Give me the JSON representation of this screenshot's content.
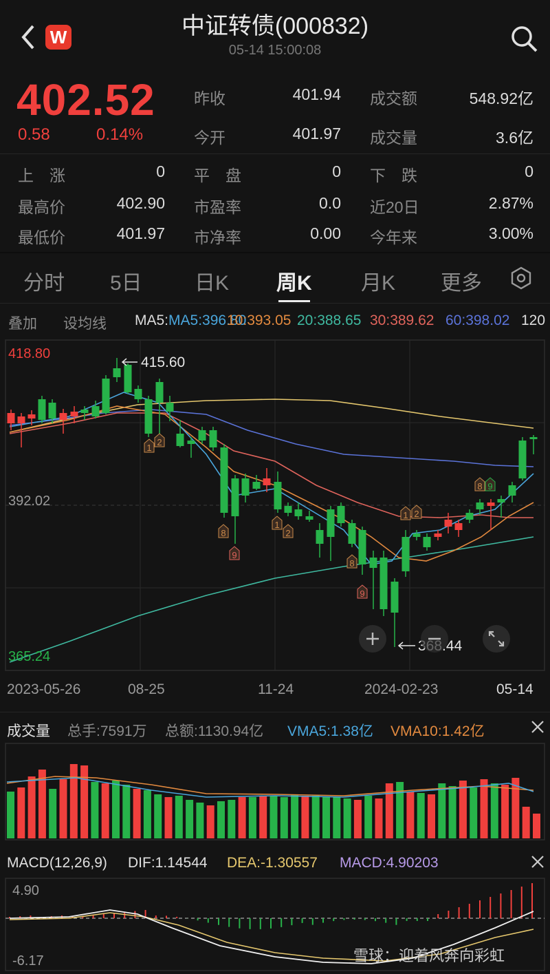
{
  "header": {
    "title": "中证转债(000832)",
    "timestamp": "05-14 15:00:08",
    "logo_text": "W",
    "back_icon": "chevron-left-icon",
    "search_icon": "search-icon"
  },
  "quote": {
    "price": "402.52",
    "change": "0.58",
    "change_pct": "0.14%",
    "prev_close_label": "昨收",
    "prev_close": "401.94",
    "open_label": "今开",
    "open": "401.97",
    "turnover_label": "成交额",
    "turnover": "548.92亿",
    "volume_label": "成交量",
    "volume": "3.6亿"
  },
  "stats": {
    "up_label": "上　涨",
    "up": "0",
    "flat_label": "平　盘",
    "flat": "0",
    "down_label": "下　跌",
    "down": "0",
    "high_label": "最高价",
    "high": "402.90",
    "pe_label": "市盈率",
    "pe": "0.0",
    "d20_label": "近20日",
    "d20": "2.87%",
    "low_label": "最低价",
    "low": "401.97",
    "pb_label": "市净率",
    "pb": "0.00",
    "ytd_label": "今年来",
    "ytd": "3.00%"
  },
  "tabs": [
    "分时",
    "5日",
    "日K",
    "周K",
    "月K",
    "更多"
  ],
  "active_tab": "周K",
  "toolbar": {
    "overlay": "叠加",
    "set_ma": "设均线",
    "ma5": "MA5:396.80",
    "ma10": "10:393.05",
    "ma20": "20:388.65",
    "ma30": "30:389.62",
    "ma60": "60:398.02",
    "ma120": "120"
  },
  "kchart": {
    "y_top": "418.80",
    "y_mid": "392.02",
    "y_bottom": "365.24",
    "max_label": "415.60",
    "min_label": "368.44",
    "dates": [
      "2023-05-26",
      "08-25",
      "11-24",
      "2024-02-23",
      "05-14"
    ]
  },
  "volume": {
    "title": "成交量",
    "total_hand": "总手:7591万",
    "total_amount": "总额:1130.94亿",
    "vma5": "VMA5:1.38亿",
    "vma10": "VMA10:1.42亿"
  },
  "macd": {
    "title": "MACD(12,26,9)",
    "dif": "DIF:1.14544",
    "dea": "DEA:-1.30557",
    "macd": "MACD:4.90203",
    "y_top": "4.90",
    "y_bottom": "-6.17"
  },
  "watermark": "雪球：迎着风奔向彩虹",
  "colors": {
    "up": "#f0403d",
    "down": "#27b34a",
    "ma5": "#4aa6dc",
    "ma10": "#e38a3f",
    "ma20": "#3fb9a0",
    "ma30": "#e0645c",
    "ma60": "#5b73d9",
    "ma120": "#e6c86e",
    "dea": "#e6c86e",
    "macd_label": "#b79ae8"
  }
}
